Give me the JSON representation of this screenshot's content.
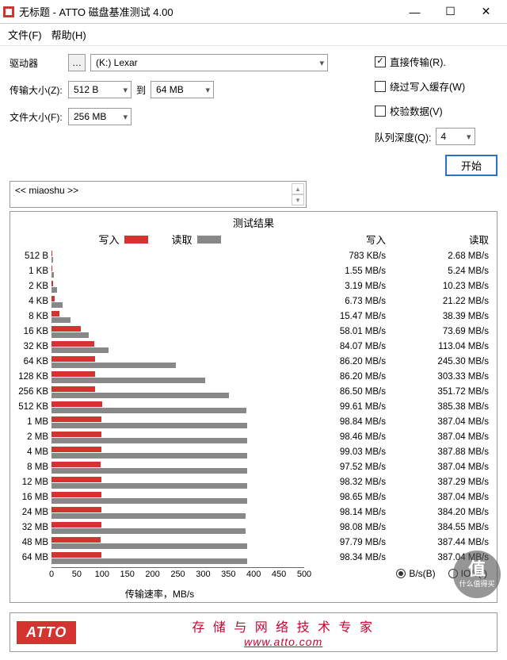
{
  "window": {
    "title": "无标题 - ATTO 磁盘基准测试 4.00"
  },
  "menu": {
    "file": "文件(F)",
    "help": "帮助(H)"
  },
  "form": {
    "drive_label": "驱动器",
    "drive_value": "(K:) Lexar",
    "transfer_label": "传输大小(Z):",
    "transfer_from": "512 B",
    "transfer_to_label": "到",
    "transfer_to": "64 MB",
    "file_label": "文件大小(F):",
    "file_value": "256 MB"
  },
  "opts": {
    "direct": "直接传输(R).",
    "bypass": "绕过写入缓存(W)",
    "verify": "校验数据(V)",
    "queue_label": "队列深度(Q):",
    "queue_value": "4",
    "start": "开始"
  },
  "desc": "<< miaoshu >>",
  "chart": {
    "title": "测试结果",
    "legend_write": "写入",
    "legend_read": "读取",
    "xlabel": "传输速率，MB/s",
    "xmax": 500,
    "xticks": [
      0,
      50,
      100,
      150,
      200,
      250,
      300,
      350,
      400,
      450,
      500
    ],
    "bar_colors": {
      "write": "#d4342f",
      "read": "#888888"
    },
    "rows": [
      {
        "label": "512 B",
        "w": 0.783,
        "r": 2.68,
        "wt": "783 KB/s",
        "rt": "2.68 MB/s"
      },
      {
        "label": "1 KB",
        "w": 1.55,
        "r": 5.24,
        "wt": "1.55 MB/s",
        "rt": "5.24 MB/s"
      },
      {
        "label": "2 KB",
        "w": 3.19,
        "r": 10.23,
        "wt": "3.19 MB/s",
        "rt": "10.23 MB/s"
      },
      {
        "label": "4 KB",
        "w": 6.73,
        "r": 21.22,
        "wt": "6.73 MB/s",
        "rt": "21.22 MB/s"
      },
      {
        "label": "8 KB",
        "w": 15.47,
        "r": 38.39,
        "wt": "15.47 MB/s",
        "rt": "38.39 MB/s"
      },
      {
        "label": "16 KB",
        "w": 58.01,
        "r": 73.69,
        "wt": "58.01 MB/s",
        "rt": "73.69 MB/s"
      },
      {
        "label": "32 KB",
        "w": 84.07,
        "r": 113.04,
        "wt": "84.07 MB/s",
        "rt": "113.04 MB/s"
      },
      {
        "label": "64 KB",
        "w": 86.2,
        "r": 245.3,
        "wt": "86.20 MB/s",
        "rt": "245.30 MB/s"
      },
      {
        "label": "128 KB",
        "w": 86.2,
        "r": 303.33,
        "wt": "86.20 MB/s",
        "rt": "303.33 MB/s"
      },
      {
        "label": "256 KB",
        "w": 86.5,
        "r": 351.72,
        "wt": "86.50 MB/s",
        "rt": "351.72 MB/s"
      },
      {
        "label": "512 KB",
        "w": 99.61,
        "r": 385.38,
        "wt": "99.61 MB/s",
        "rt": "385.38 MB/s"
      },
      {
        "label": "1 MB",
        "w": 98.84,
        "r": 387.04,
        "wt": "98.84 MB/s",
        "rt": "387.04 MB/s"
      },
      {
        "label": "2 MB",
        "w": 98.46,
        "r": 387.04,
        "wt": "98.46 MB/s",
        "rt": "387.04 MB/s"
      },
      {
        "label": "4 MB",
        "w": 99.03,
        "r": 387.88,
        "wt": "99.03 MB/s",
        "rt": "387.88 MB/s"
      },
      {
        "label": "8 MB",
        "w": 97.52,
        "r": 387.04,
        "wt": "97.52 MB/s",
        "rt": "387.04 MB/s"
      },
      {
        "label": "12 MB",
        "w": 98.32,
        "r": 387.29,
        "wt": "98.32 MB/s",
        "rt": "387.29 MB/s"
      },
      {
        "label": "16 MB",
        "w": 98.65,
        "r": 387.04,
        "wt": "98.65 MB/s",
        "rt": "387.04 MB/s"
      },
      {
        "label": "24 MB",
        "w": 98.14,
        "r": 384.2,
        "wt": "98.14 MB/s",
        "rt": "384.20 MB/s"
      },
      {
        "label": "32 MB",
        "w": 98.08,
        "r": 384.55,
        "wt": "98.08 MB/s",
        "rt": "384.55 MB/s"
      },
      {
        "label": "48 MB",
        "w": 97.79,
        "r": 387.44,
        "wt": "97.79 MB/s",
        "rt": "387.44 MB/s"
      },
      {
        "label": "64 MB",
        "w": 98.34,
        "r": 387.04,
        "wt": "98.34 MB/s",
        "rt": "387.04 MB/s"
      }
    ]
  },
  "units": {
    "bytes": "B/s(B)",
    "io": "IO/s(I)"
  },
  "footer": {
    "logo": "ATTO",
    "tagline": "存 储 与 网 络 技 术 专 家",
    "url": "www.atto.com"
  },
  "watermark": {
    "char": "值",
    "text": "什么值得买"
  }
}
